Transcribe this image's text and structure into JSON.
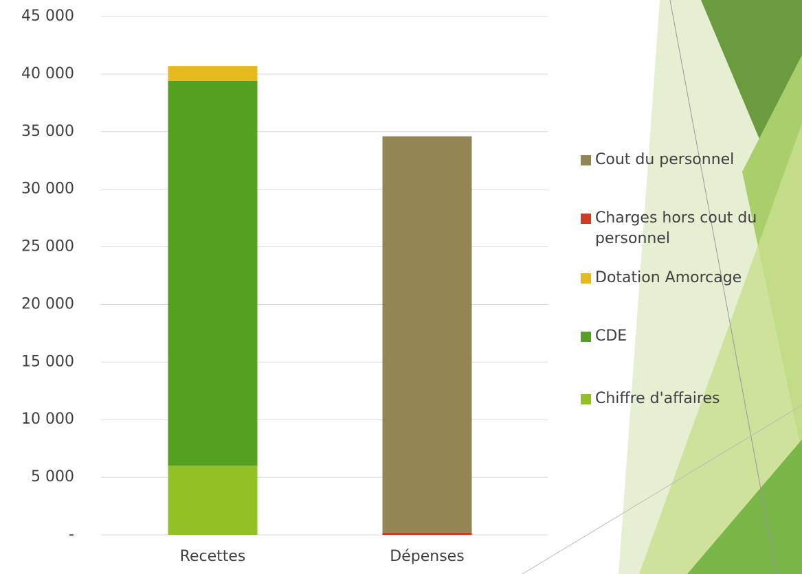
{
  "chart_data": {
    "type": "stacked-bar",
    "categories": [
      "Recettes",
      "Dépenses"
    ],
    "series": [
      {
        "name": "Chiffre d'affaires",
        "color": "#92c125",
        "values": [
          6000,
          null
        ]
      },
      {
        "name": "CDE",
        "color": "#54a021",
        "values": [
          33400,
          null
        ]
      },
      {
        "name": "Dotation Amorcage",
        "color": "#e6b91e",
        "values": [
          1300,
          null
        ]
      },
      {
        "name": "Charges hors cout du personnel",
        "color": "#d03a1f",
        "values": [
          null,
          200
        ]
      },
      {
        "name": "Cout du personnel",
        "color": "#938654",
        "values": [
          null,
          34400
        ]
      }
    ],
    "ylim": [
      0,
      45000
    ],
    "yticks": [
      {
        "value": 0,
        "label": "-"
      },
      {
        "value": 5000,
        "label": "5 000"
      },
      {
        "value": 10000,
        "label": "10 000"
      },
      {
        "value": 15000,
        "label": "15 000"
      },
      {
        "value": 20000,
        "label": "20 000"
      },
      {
        "value": 25000,
        "label": "25 000"
      },
      {
        "value": 30000,
        "label": "30 000"
      },
      {
        "value": 35000,
        "label": "35 000"
      },
      {
        "value": 40000,
        "label": "40 000"
      },
      {
        "value": 45000,
        "label": "45 000"
      }
    ],
    "grid": true,
    "legend": "right"
  }
}
